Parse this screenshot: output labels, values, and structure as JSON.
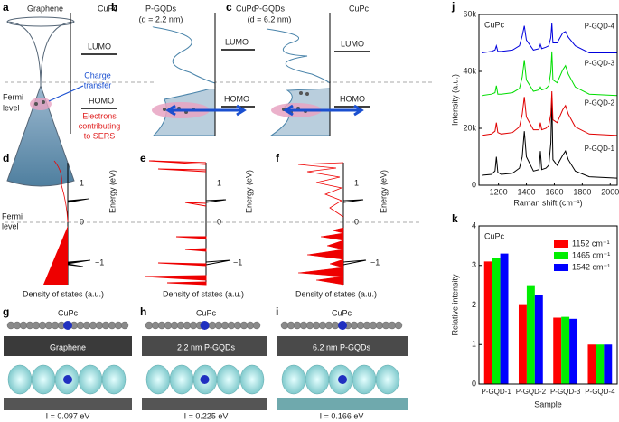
{
  "panels": {
    "a": {
      "letter": "a",
      "left": "Graphene",
      "right": "CuPc",
      "fermi": [
        "Fermi",
        "level"
      ],
      "transfer": [
        "Charge",
        "transfer"
      ],
      "lumo": "LUMO",
      "homo": "HOMO",
      "sers": [
        "Electrons",
        "contributing",
        "to SERS"
      ]
    },
    "b": {
      "letter": "b",
      "title": "P-GQDs",
      "size": "(d = 2.2 nm)",
      "right": "CuPc",
      "lumo": "LUMO",
      "homo": "HOMO"
    },
    "c": {
      "letter": "c",
      "title": "P-GQDs",
      "size": "(d = 6.2 nm)",
      "right": "CuPc",
      "lumo": "LUMO",
      "homo": "HOMO"
    },
    "d": {
      "letter": "d",
      "fermi": [
        "Fermi",
        "level"
      ],
      "xlabel": "Density of states (a.u.)",
      "ylabel": "Energy (eV)",
      "ticks": [
        "1",
        "0",
        "−1"
      ]
    },
    "e": {
      "letter": "e",
      "xlabel": "Density of states (a.u.)",
      "ylabel": "Energy (eV)",
      "ticks": [
        "1",
        "0",
        "−1"
      ]
    },
    "f": {
      "letter": "f",
      "xlabel": "Density of states (a.u.)",
      "ylabel": "Energy (eV)",
      "ticks": [
        "1",
        "0",
        "−1"
      ]
    },
    "g": {
      "letter": "g",
      "molecule": "CuPc",
      "substrate": "Graphene",
      "energy": "I = 0.097 eV"
    },
    "h": {
      "letter": "h",
      "molecule": "CuPc",
      "substrate": "2.2 nm P-GQDs",
      "energy": "I = 0.225 eV"
    },
    "i": {
      "letter": "i",
      "molecule": "CuPc",
      "substrate": "6.2 nm P-GQDs",
      "energy": "I = 0.166 eV"
    }
  },
  "chart_data": [
    {
      "type": "line",
      "letter": "j",
      "annotation": "CuPc",
      "xlabel": "Raman shift (cm⁻¹)",
      "ylabel": "Intensity (a.u.)",
      "x": [
        1080,
        1150,
        1175,
        1185,
        1195,
        1220,
        1300,
        1350,
        1370,
        1385,
        1400,
        1450,
        1490,
        1500,
        1510,
        1540,
        1560,
        1575,
        1582,
        1590,
        1620,
        1660,
        1680,
        1700,
        1750,
        1850,
        2050
      ],
      "xlim": [
        1060,
        2050
      ],
      "xticks": [
        1200,
        1400,
        1600,
        1800,
        2000
      ],
      "ylim": [
        0,
        60000
      ],
      "yticks": [
        0,
        {
          "value": 20000,
          "label": "20k"
        },
        {
          "value": 40000,
          "label": "40k"
        },
        {
          "value": 60000,
          "label": "60k"
        }
      ],
      "series": [
        {
          "name": "P-GQD-1",
          "color": "#000000",
          "values": [
            3500,
            3800,
            5000,
            10000,
            4500,
            3800,
            4200,
            6000,
            10000,
            19000,
            10000,
            5000,
            5500,
            12000,
            5500,
            6000,
            7000,
            15000,
            30000,
            9000,
            7000,
            10500,
            12000,
            9000,
            5000,
            3000,
            2500
          ]
        },
        {
          "name": "P-GQD-2",
          "color": "#e00000",
          "values": [
            17500,
            18000,
            19000,
            22000,
            18500,
            18000,
            18500,
            20500,
            25000,
            31000,
            24000,
            19500,
            19500,
            22000,
            19500,
            20000,
            21000,
            25000,
            33000,
            23000,
            22000,
            26500,
            28000,
            25000,
            20500,
            18000,
            17500
          ]
        },
        {
          "name": "P-GQD-3",
          "color": "#00dd00",
          "values": [
            31500,
            32000,
            32500,
            35000,
            32000,
            32000,
            32500,
            34000,
            38000,
            44000,
            37000,
            33000,
            33500,
            34500,
            33500,
            34000,
            35000,
            40000,
            47000,
            37000,
            36000,
            40500,
            42000,
            39000,
            34500,
            32000,
            31500
          ]
        },
        {
          "name": "P-GQD-4",
          "color": "#0000dd",
          "values": [
            46500,
            47000,
            47500,
            49000,
            47000,
            47000,
            47500,
            49000,
            52500,
            56000,
            51000,
            47500,
            48000,
            49500,
            48000,
            48500,
            49000,
            52000,
            57000,
            50000,
            50000,
            53500,
            54000,
            52000,
            49000,
            46500,
            46500
          ]
        }
      ]
    },
    {
      "type": "bar",
      "letter": "k",
      "annotation": "CuPc",
      "xlabel": "Sample",
      "ylabel": "Relative intensity",
      "legend": "upper right",
      "categories": [
        "P-GQD-1",
        "P-GQD-2",
        "P-GQD-3",
        "P-GQD-4"
      ],
      "ylim": [
        0,
        4
      ],
      "yticks": [
        0,
        1,
        2,
        3,
        4
      ],
      "series": [
        {
          "name": "1152 cm⁻¹",
          "color": "#ff0000",
          "values": [
            3.1,
            2.02,
            1.68,
            1.0
          ]
        },
        {
          "name": "1465 cm⁻¹",
          "color": "#00ee00",
          "values": [
            3.18,
            2.5,
            1.7,
            1.0
          ]
        },
        {
          "name": "1542 cm⁻¹",
          "color": "#0000ff",
          "values": [
            3.3,
            2.25,
            1.65,
            1.0
          ]
        }
      ]
    }
  ]
}
